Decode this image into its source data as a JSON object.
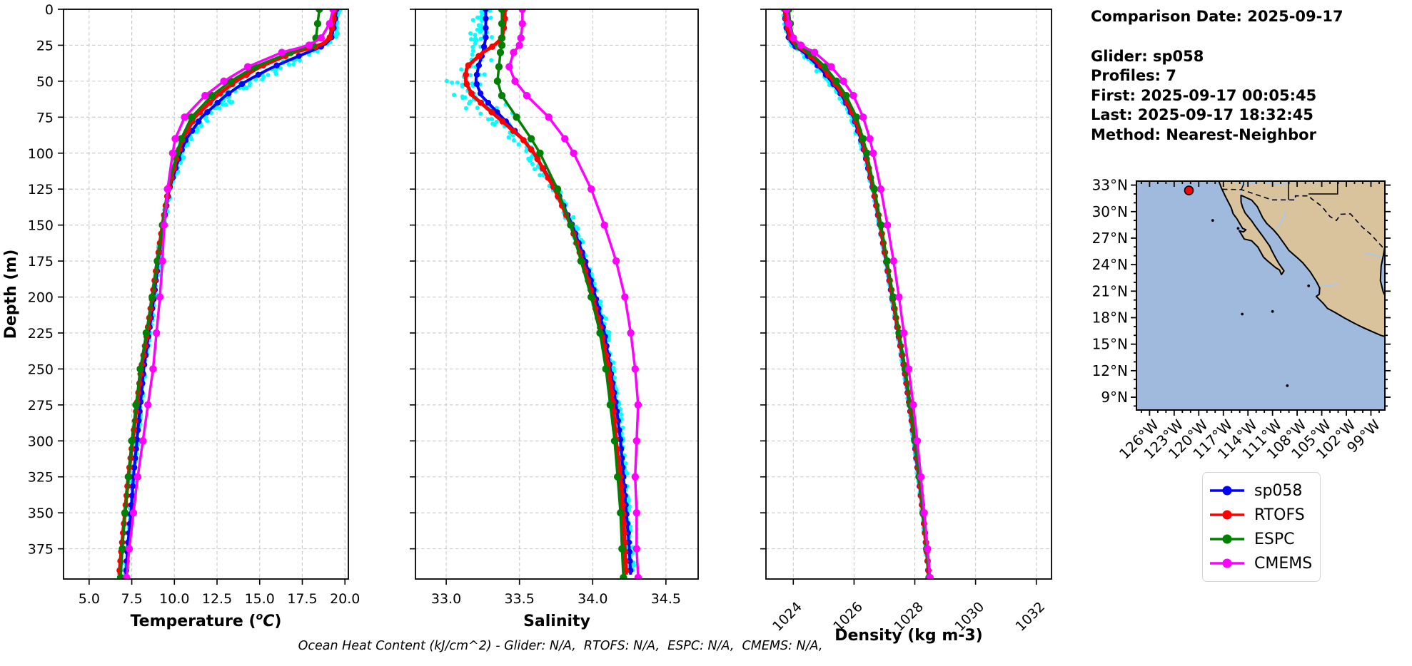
{
  "info_panel": {
    "date": "Comparison Date: 2025-09-17",
    "glider": "Glider: sp058",
    "profiles": "Profiles: 7",
    "first": "First: 2025-09-17 00:05:45",
    "last": "Last: 2025-09-17 18:32:45",
    "method": "Method: Nearest-Neighbor"
  },
  "footer": "Ocean Heat Content (kJ/cm^2) - Glider: N/A,  RTOFS: N/A,  ESPC: N/A,  CMEMS: N/A,",
  "legend": {
    "items": [
      {
        "label": "sp058",
        "color": "#0000ff"
      },
      {
        "label": "RTOFS",
        "color": "#ff0000"
      },
      {
        "label": "ESPC",
        "color": "#008000"
      },
      {
        "label": "CMEMS",
        "color": "#ff00ff"
      }
    ]
  },
  "colors": {
    "grid": "#c8c8c8",
    "axis": "#000000",
    "scatter": "#00ffff",
    "map_ocean": "#a0bade",
    "map_land": "#d8c39c",
    "map_river": "#a9c8ee",
    "glider_dot": "#ff0000"
  },
  "chart_data": {
    "type": "line",
    "title": "",
    "grid": true,
    "legend_position": "lower-right",
    "ylabel": "Depth (m)",
    "ylim": [
      0,
      396
    ],
    "yticks": [
      0,
      25,
      50,
      75,
      100,
      125,
      150,
      175,
      200,
      225,
      250,
      275,
      300,
      325,
      350,
      375
    ],
    "depths": [
      0,
      10,
      20,
      25,
      30,
      40,
      50,
      60,
      75,
      90,
      100,
      125,
      150,
      175,
      200,
      225,
      250,
      275,
      300,
      325,
      350,
      375,
      395
    ],
    "plots": [
      {
        "id": "temperature",
        "xlabel_parts": [
          {
            "t": "Temperature ("
          },
          {
            "t": "o",
            "sup": true,
            "italic": true
          },
          {
            "t": "C",
            "italic": true
          },
          {
            "t": ")"
          }
        ],
        "xlabel_plain": "Temperature (°C)",
        "xlim": [
          3.5,
          20.2
        ],
        "xticks": [
          5.0,
          7.5,
          10.0,
          12.5,
          15.0,
          17.5,
          20.0
        ],
        "xtick_labels": [
          "5.0",
          "7.5",
          "10.0",
          "12.5",
          "15.0",
          "17.5",
          "20.0"
        ],
        "rotate_xtick_labels": false,
        "series": [
          {
            "name": "sp058",
            "color": "#0000ff",
            "lw": 4,
            "mr": 4.2,
            "marker": "dense",
            "values": [
              19.5,
              19.4,
              19.2,
              18.8,
              17.8,
              15.8,
              14.2,
              13.0,
              11.6,
              10.7,
              10.35,
              9.7,
              9.35,
              9.05,
              8.8,
              8.5,
              8.2,
              8.0,
              7.8,
              7.6,
              7.45,
              7.25,
              7.15
            ]
          },
          {
            "name": "RTOFS",
            "color": "#ff0000",
            "lw": 5,
            "mr": 4.4,
            "marker": "dense",
            "values": [
              19.4,
              19.3,
              19.1,
              18.6,
              17.0,
              15.0,
              13.6,
              12.5,
              11.2,
              10.5,
              10.2,
              9.65,
              9.3,
              9.0,
              8.7,
              8.4,
              8.05,
              7.8,
              7.55,
              7.3,
              7.1,
              6.9,
              6.75
            ]
          },
          {
            "name": "ESPC",
            "color": "#008000",
            "lw": 3.5,
            "mr": 5.2,
            "marker": "points",
            "values": [
              18.5,
              18.4,
              18.3,
              18.1,
              16.8,
              14.7,
              13.3,
              12.2,
              11.0,
              10.4,
              10.15,
              9.6,
              9.3,
              9.0,
              8.7,
              8.35,
              8.0,
              7.75,
              7.5,
              7.3,
              7.1,
              6.95,
              6.85
            ]
          },
          {
            "name": "CMEMS",
            "color": "#ff00ff",
            "lw": 3.5,
            "mr": 5.2,
            "marker": "points",
            "values": [
              19.3,
              19.1,
              18.6,
              17.9,
              16.3,
              14.3,
              12.9,
              11.8,
              10.6,
              10.05,
              9.9,
              9.6,
              9.4,
              9.3,
              9.15,
              8.95,
              8.75,
              8.45,
              8.15,
              7.85,
              7.6,
              7.35,
              7.2
            ]
          }
        ],
        "scatter": {
          "name": "glider-raw-temperature",
          "seed": 7,
          "count": 430,
          "amp_base": 0.12,
          "amp_peak": 0.55,
          "bias_peak": 0.25,
          "peak_depth": 52,
          "peak_width": 38
        }
      },
      {
        "id": "salinity",
        "xlabel_parts": [
          {
            "t": "Salinity"
          }
        ],
        "xlabel_plain": "Salinity",
        "xlim": [
          32.79,
          34.72
        ],
        "xticks": [
          33.0,
          33.5,
          34.0,
          34.5
        ],
        "xtick_labels": [
          "33.0",
          "33.5",
          "34.0",
          "34.5"
        ],
        "rotate_xtick_labels": false,
        "series": [
          {
            "name": "sp058",
            "color": "#0000ff",
            "lw": 4,
            "mr": 4.2,
            "marker": "dense",
            "values": [
              33.27,
              33.27,
              33.27,
              33.26,
              33.25,
              33.22,
              33.2,
              33.24,
              33.38,
              33.52,
              33.6,
              33.75,
              33.86,
              33.95,
              34.02,
              34.08,
              34.12,
              34.16,
              34.19,
              34.21,
              34.23,
              34.25,
              34.26
            ]
          },
          {
            "name": "RTOFS",
            "color": "#ff0000",
            "lw": 5,
            "mr": 4.4,
            "marker": "dense",
            "values": [
              33.4,
              33.4,
              33.38,
              33.33,
              33.25,
              33.14,
              33.13,
              33.18,
              33.35,
              33.52,
              33.6,
              33.74,
              33.85,
              33.93,
              34.0,
              34.06,
              34.11,
              34.14,
              34.16,
              34.19,
              34.21,
              34.22,
              34.23
            ]
          },
          {
            "name": "ESPC",
            "color": "#008000",
            "lw": 3.5,
            "mr": 5.2,
            "marker": "points",
            "values": [
              33.38,
              33.38,
              33.38,
              33.38,
              33.37,
              33.36,
              33.35,
              33.38,
              33.48,
              33.58,
              33.64,
              33.76,
              33.85,
              33.92,
              33.99,
              34.05,
              34.09,
              34.12,
              34.15,
              34.17,
              34.19,
              34.2,
              34.21
            ]
          },
          {
            "name": "CMEMS",
            "color": "#ff00ff",
            "lw": 3.5,
            "mr": 5.2,
            "marker": "points",
            "values": [
              33.52,
              33.52,
              33.51,
              33.5,
              33.46,
              33.43,
              33.47,
              33.55,
              33.7,
              33.81,
              33.87,
              33.99,
              34.08,
              34.16,
              34.22,
              34.26,
              34.29,
              34.31,
              34.3,
              34.29,
              34.3,
              34.3,
              34.31
            ]
          }
        ],
        "scatter": {
          "name": "glider-raw-salinity",
          "seed": 8,
          "count": 430,
          "amp_base": 0.035,
          "amp_peak": 0.13,
          "bias_peak": -0.07,
          "peak_depth": 58,
          "peak_width": 42
        }
      },
      {
        "id": "density",
        "xlabel_parts": [
          {
            "t": "Density (kg m-3)"
          }
        ],
        "xlabel_plain": "Density (kg m-3)",
        "xlim": [
          1023.1,
          1032.5
        ],
        "xticks": [
          1024,
          1026,
          1028,
          1030,
          1032
        ],
        "xtick_labels": [
          "1024",
          "1026",
          "1028",
          "1030",
          "1032"
        ],
        "rotate_xtick_labels": true,
        "series": [
          {
            "name": "sp058",
            "color": "#0000ff",
            "lw": 4,
            "mr": 4.2,
            "marker": "dense",
            "values": [
              1023.7,
              1023.75,
              1023.85,
              1024.0,
              1024.35,
              1024.85,
              1025.25,
              1025.6,
              1025.98,
              1026.22,
              1026.35,
              1026.62,
              1026.85,
              1027.05,
              1027.25,
              1027.45,
              1027.65,
              1027.82,
              1027.98,
              1028.12,
              1028.26,
              1028.38,
              1028.46
            ]
          },
          {
            "name": "RTOFS",
            "color": "#ff0000",
            "lw": 5,
            "mr": 4.4,
            "marker": "dense",
            "values": [
              1023.72,
              1023.78,
              1023.9,
              1024.08,
              1024.45,
              1024.95,
              1025.32,
              1025.66,
              1026.02,
              1026.25,
              1026.38,
              1026.64,
              1026.87,
              1027.07,
              1027.27,
              1027.47,
              1027.67,
              1027.84,
              1028.0,
              1028.14,
              1028.27,
              1028.39,
              1028.47
            ]
          },
          {
            "name": "ESPC",
            "color": "#008000",
            "lw": 3.5,
            "mr": 5.2,
            "marker": "points",
            "values": [
              1023.85,
              1023.9,
              1024.0,
              1024.15,
              1024.55,
              1025.05,
              1025.42,
              1025.74,
              1026.08,
              1026.3,
              1026.42,
              1026.67,
              1026.89,
              1027.09,
              1027.29,
              1027.48,
              1027.68,
              1027.85,
              1028.0,
              1028.14,
              1028.27,
              1028.39,
              1028.47
            ]
          },
          {
            "name": "CMEMS",
            "color": "#ff00ff",
            "lw": 3.5,
            "mr": 5.2,
            "marker": "points",
            "values": [
              1023.78,
              1023.85,
              1024.0,
              1024.25,
              1024.7,
              1025.25,
              1025.65,
              1025.98,
              1026.3,
              1026.52,
              1026.63,
              1026.88,
              1027.1,
              1027.3,
              1027.48,
              1027.64,
              1027.8,
              1027.95,
              1028.08,
              1028.2,
              1028.31,
              1028.42,
              1028.5
            ]
          }
        ],
        "scatter": {
          "name": "glider-raw-density",
          "seed": 9,
          "count": 430,
          "amp_base": 0.04,
          "amp_peak": 0.12,
          "bias_peak": -0.05,
          "peak_depth": 52,
          "peak_width": 40
        }
      }
    ],
    "map": {
      "lat_tick_labels": [
        "33°N",
        "30°N",
        "27°N",
        "24°N",
        "21°N",
        "18°N",
        "15°N",
        "12°N",
        "9°N"
      ],
      "lat_tick_vals": [
        33,
        30,
        27,
        24,
        21,
        18,
        15,
        12,
        9
      ],
      "lon_tick_labels": [
        "126°W",
        "123°W",
        "120°W",
        "117°W",
        "114°W",
        "111°W",
        "108°W",
        "105°W",
        "102°W",
        "99°W"
      ],
      "lon_tick_vals": [
        -126,
        -123,
        -120,
        -117,
        -114,
        -111,
        -108,
        -105,
        -102,
        -99
      ],
      "lon_range": [
        -127.6,
        -97.3
      ],
      "lat_range": [
        7.55,
        33.45
      ],
      "glider_marker": {
        "lon": -121.2,
        "lat": 32.4
      }
    }
  }
}
